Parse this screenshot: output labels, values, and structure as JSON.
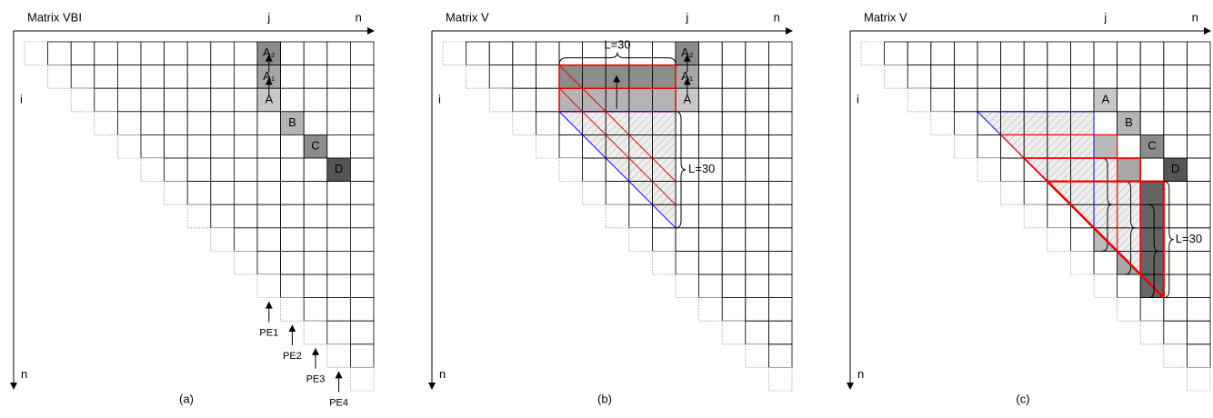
{
  "panels": [
    {
      "title": "Matrix VBI",
      "j_label": "j",
      "n_top": "n",
      "i_label": "i",
      "n_left": "n",
      "caption": "(a)",
      "cells": [
        "A₂",
        "A₁",
        "A",
        "B",
        "C",
        "D"
      ],
      "pe": [
        "PE1",
        "PE2",
        "PE3",
        "PE4"
      ]
    },
    {
      "title": "Matrix V",
      "j_label": "j",
      "n_top": "n",
      "i_label": "i",
      "n_left": "n",
      "caption": "(b)",
      "cells": [
        "A₂",
        "A₁",
        "A"
      ],
      "annotations": [
        "L=30",
        "L=30"
      ]
    },
    {
      "title": "Matrix V",
      "j_label": "j",
      "n_top": "n",
      "i_label": "i",
      "n_left": "n",
      "caption": "(c)",
      "cells": [
        "A",
        "B",
        "C",
        "D"
      ],
      "annotations": [
        "L=30"
      ]
    }
  ]
}
